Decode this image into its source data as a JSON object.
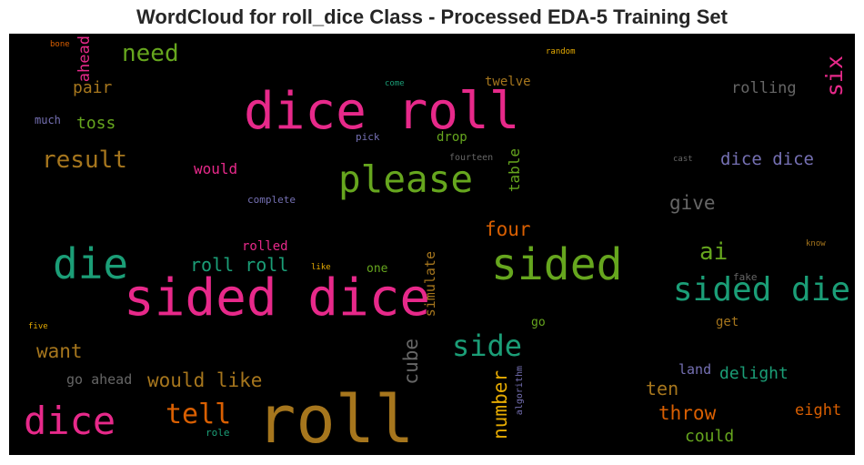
{
  "chart_data": {
    "type": "wordcloud",
    "title": "WordCloud for roll_dice Class - Processed EDA-5 Training Set",
    "background": "#000000",
    "words": [
      {
        "text": "roll",
        "weight": 1.0,
        "color": "#a6761d",
        "vertical": false
      },
      {
        "text": "sided dice",
        "weight": 0.85,
        "color": "#e7298a",
        "vertical": false
      },
      {
        "text": "dice roll",
        "weight": 0.85,
        "color": "#e7298a",
        "vertical": false
      },
      {
        "text": "sided",
        "weight": 0.7,
        "color": "#66a61e",
        "vertical": false
      },
      {
        "text": "die",
        "weight": 0.65,
        "color": "#1b9e77",
        "vertical": false
      },
      {
        "text": "dice",
        "weight": 0.62,
        "color": "#e7298a",
        "vertical": false
      },
      {
        "text": "please",
        "weight": 0.6,
        "color": "#66a61e",
        "vertical": false
      },
      {
        "text": "sided die",
        "weight": 0.55,
        "color": "#1b9e77",
        "vertical": false
      },
      {
        "text": "side",
        "weight": 0.5,
        "color": "#1b9e77",
        "vertical": false
      },
      {
        "text": "tell",
        "weight": 0.45,
        "color": "#d95f02",
        "vertical": false
      },
      {
        "text": "result",
        "weight": 0.4,
        "color": "#a6761d",
        "vertical": false
      },
      {
        "text": "need",
        "weight": 0.4,
        "color": "#66a61e",
        "vertical": false
      },
      {
        "text": "ai",
        "weight": 0.38,
        "color": "#66a61e",
        "vertical": false
      },
      {
        "text": "six",
        "weight": 0.36,
        "color": "#e7298a",
        "vertical": true
      },
      {
        "text": "would like",
        "weight": 0.32,
        "color": "#a6761d",
        "vertical": false
      },
      {
        "text": "throw",
        "weight": 0.3,
        "color": "#d95f02",
        "vertical": false
      },
      {
        "text": "number",
        "weight": 0.3,
        "color": "#e6ab02",
        "vertical": true
      },
      {
        "text": "cube",
        "weight": 0.3,
        "color": "#666666",
        "vertical": true
      },
      {
        "text": "want",
        "weight": 0.3,
        "color": "#a6761d",
        "vertical": false
      },
      {
        "text": "roll roll",
        "weight": 0.3,
        "color": "#1b9e77",
        "vertical": false
      },
      {
        "text": "four",
        "weight": 0.3,
        "color": "#d95f02",
        "vertical": false
      },
      {
        "text": "give",
        "weight": 0.3,
        "color": "#666666",
        "vertical": false
      },
      {
        "text": "dice dice",
        "weight": 0.28,
        "color": "#7570b3",
        "vertical": false
      },
      {
        "text": "ten",
        "weight": 0.28,
        "color": "#a6761d",
        "vertical": false
      },
      {
        "text": "toss",
        "weight": 0.27,
        "color": "#66a61e",
        "vertical": false
      },
      {
        "text": "pair",
        "weight": 0.27,
        "color": "#a6761d",
        "vertical": false
      },
      {
        "text": "delight",
        "weight": 0.25,
        "color": "#1b9e77",
        "vertical": false
      },
      {
        "text": "could",
        "weight": 0.25,
        "color": "#66a61e",
        "vertical": false
      },
      {
        "text": "eight",
        "weight": 0.25,
        "color": "#d95f02",
        "vertical": false
      },
      {
        "text": "rolling",
        "weight": 0.25,
        "color": "#666666",
        "vertical": false
      },
      {
        "text": "ahead",
        "weight": 0.25,
        "color": "#e7298a",
        "vertical": true
      },
      {
        "text": "table",
        "weight": 0.23,
        "color": "#66a61e",
        "vertical": true
      },
      {
        "text": "simulate",
        "weight": 0.22,
        "color": "#a6761d",
        "vertical": true
      },
      {
        "text": "would",
        "weight": 0.22,
        "color": "#e7298a",
        "vertical": false
      },
      {
        "text": "land",
        "weight": 0.22,
        "color": "#7570b3",
        "vertical": false
      },
      {
        "text": "go ahead",
        "weight": 0.2,
        "color": "#666666",
        "vertical": false
      },
      {
        "text": "twelve",
        "weight": 0.2,
        "color": "#a6761d",
        "vertical": false
      },
      {
        "text": "drop",
        "weight": 0.2,
        "color": "#66a61e",
        "vertical": false
      },
      {
        "text": "get",
        "weight": 0.2,
        "color": "#a6761d",
        "vertical": false
      },
      {
        "text": "rolled",
        "weight": 0.18,
        "color": "#e7298a",
        "vertical": false
      },
      {
        "text": "one",
        "weight": 0.18,
        "color": "#66a61e",
        "vertical": false
      },
      {
        "text": "go",
        "weight": 0.17,
        "color": "#66a61e",
        "vertical": false
      },
      {
        "text": "much",
        "weight": 0.16,
        "color": "#7570b3",
        "vertical": false
      },
      {
        "text": "pick",
        "weight": 0.15,
        "color": "#7570b3",
        "vertical": false
      },
      {
        "text": "complete",
        "weight": 0.15,
        "color": "#7570b3",
        "vertical": false
      },
      {
        "text": "algorithm",
        "weight": 0.14,
        "color": "#7570b3",
        "vertical": true
      },
      {
        "text": "fake",
        "weight": 0.14,
        "color": "#666666",
        "vertical": false
      },
      {
        "text": "role",
        "weight": 0.14,
        "color": "#1b9e77",
        "vertical": false
      },
      {
        "text": "fourteen",
        "weight": 0.12,
        "color": "#666666",
        "vertical": false
      },
      {
        "text": "cast",
        "weight": 0.11,
        "color": "#666666",
        "vertical": false
      },
      {
        "text": "come",
        "weight": 0.11,
        "color": "#1b9e77",
        "vertical": false
      },
      {
        "text": "random",
        "weight": 0.11,
        "color": "#e6ab02",
        "vertical": false
      },
      {
        "text": "bone",
        "weight": 0.1,
        "color": "#d95f02",
        "vertical": false
      },
      {
        "text": "like",
        "weight": 0.1,
        "color": "#e6ab02",
        "vertical": false
      },
      {
        "text": "know",
        "weight": 0.1,
        "color": "#a6761d",
        "vertical": false
      },
      {
        "text": "five",
        "weight": 0.1,
        "color": "#e6ab02",
        "vertical": false
      }
    ]
  }
}
